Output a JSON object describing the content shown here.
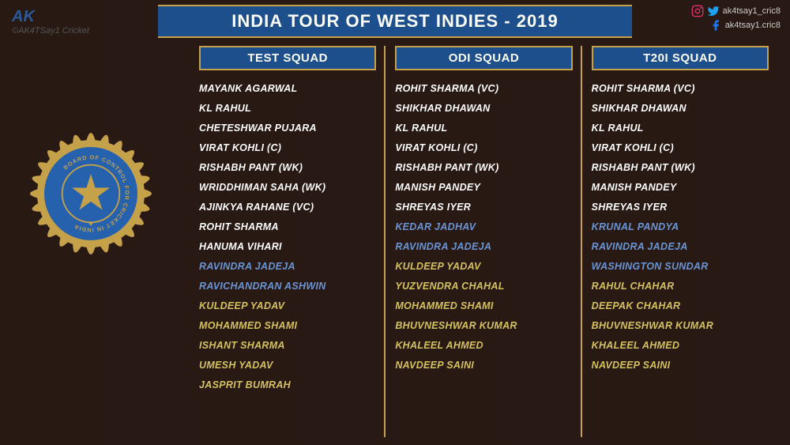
{
  "title": "INDIA TOUR OF WEST INDIES - 2019",
  "logo_text": "AK",
  "credit": "©AK4TSay1 Cricket",
  "social": {
    "handle1": "ak4tsay1_cric8",
    "handle2": "ak4tsay1.cric8"
  },
  "colors": {
    "title_bg": "#1d4f8c",
    "gold": "#c5a14a",
    "batsman": "#ffffff",
    "allrounder": "#6a95d4",
    "bowler": "#d4c35a"
  },
  "emblem_text": "BOARD OF CONTROL FOR CRICKET IN INDIA",
  "columns": [
    {
      "header": "TEST SQUAD",
      "players": [
        {
          "name": "MAYANK AGARWAL",
          "role": "batsman"
        },
        {
          "name": "KL RAHUL",
          "role": "batsman"
        },
        {
          "name": "CHETESHWAR PUJARA",
          "role": "batsman"
        },
        {
          "name": "VIRAT KOHLI (C)",
          "role": "batsman"
        },
        {
          "name": "RISHABH PANT (WK)",
          "role": "batsman"
        },
        {
          "name": "WRIDDHIMAN SAHA (WK)",
          "role": "batsman"
        },
        {
          "name": "AJINKYA RAHANE (VC)",
          "role": "batsman"
        },
        {
          "name": "ROHIT SHARMA",
          "role": "batsman"
        },
        {
          "name": "HANUMA VIHARI",
          "role": "batsman"
        },
        {
          "name": "RAVINDRA JADEJA",
          "role": "allrounder"
        },
        {
          "name": "RAVICHANDRAN ASHWIN",
          "role": "allrounder"
        },
        {
          "name": "KULDEEP YADAV",
          "role": "bowler"
        },
        {
          "name": "MOHAMMED SHAMI",
          "role": "bowler"
        },
        {
          "name": "ISHANT SHARMA",
          "role": "bowler"
        },
        {
          "name": "UMESH YADAV",
          "role": "bowler"
        },
        {
          "name": "JASPRIT BUMRAH",
          "role": "bowler"
        }
      ]
    },
    {
      "header": "ODI SQUAD",
      "players": [
        {
          "name": "ROHIT SHARMA (VC)",
          "role": "batsman"
        },
        {
          "name": "SHIKHAR DHAWAN",
          "role": "batsman"
        },
        {
          "name": "KL RAHUL",
          "role": "batsman"
        },
        {
          "name": "VIRAT KOHLI (C)",
          "role": "batsman"
        },
        {
          "name": "RISHABH PANT (WK)",
          "role": "batsman"
        },
        {
          "name": "MANISH PANDEY",
          "role": "batsman"
        },
        {
          "name": "SHREYAS IYER",
          "role": "batsman"
        },
        {
          "name": "KEDAR JADHAV",
          "role": "allrounder"
        },
        {
          "name": "RAVINDRA JADEJA",
          "role": "allrounder"
        },
        {
          "name": "KULDEEP YADAV",
          "role": "bowler"
        },
        {
          "name": "YUZVENDRA CHAHAL",
          "role": "bowler"
        },
        {
          "name": "MOHAMMED SHAMI",
          "role": "bowler"
        },
        {
          "name": "BHUVNESHWAR KUMAR",
          "role": "bowler"
        },
        {
          "name": "KHALEEL AHMED",
          "role": "bowler"
        },
        {
          "name": "NAVDEEP SAINI",
          "role": "bowler"
        }
      ]
    },
    {
      "header": "T20I SQUAD",
      "players": [
        {
          "name": "ROHIT SHARMA (VC)",
          "role": "batsman"
        },
        {
          "name": "SHIKHAR DHAWAN",
          "role": "batsman"
        },
        {
          "name": "KL RAHUL",
          "role": "batsman"
        },
        {
          "name": "VIRAT KOHLI (C)",
          "role": "batsman"
        },
        {
          "name": "RISHABH PANT (WK)",
          "role": "batsman"
        },
        {
          "name": "MANISH PANDEY",
          "role": "batsman"
        },
        {
          "name": "SHREYAS IYER",
          "role": "batsman"
        },
        {
          "name": "KRUNAL PANDYA",
          "role": "allrounder"
        },
        {
          "name": "RAVINDRA JADEJA",
          "role": "allrounder"
        },
        {
          "name": "WASHINGTON SUNDAR",
          "role": "allrounder"
        },
        {
          "name": "RAHUL CHAHAR",
          "role": "bowler"
        },
        {
          "name": "DEEPAK CHAHAR",
          "role": "bowler"
        },
        {
          "name": "BHUVNESHWAR KUMAR",
          "role": "bowler"
        },
        {
          "name": "KHALEEL AHMED",
          "role": "bowler"
        },
        {
          "name": "NAVDEEP SAINI",
          "role": "bowler"
        }
      ]
    }
  ]
}
